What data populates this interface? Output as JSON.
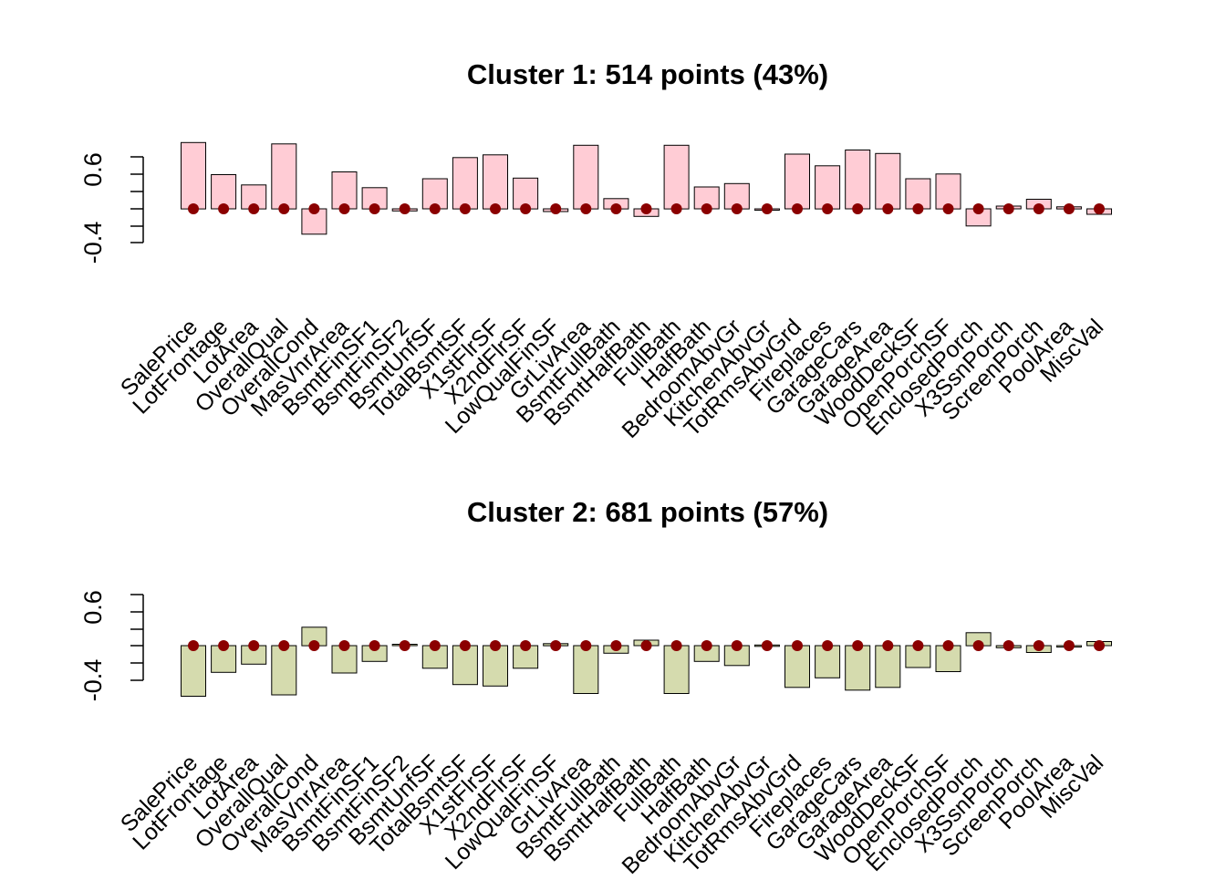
{
  "chart_data": [
    {
      "type": "bar",
      "title": "Cluster 1: 514 points (43%)",
      "xlabel": "",
      "ylabel": "",
      "yticks": [
        "0.6",
        "-0.4"
      ],
      "bar_color": "#FFCCD5",
      "marker_color": "#8B0000",
      "categories": [
        "SalePrice",
        "LotFrontage",
        "LotArea",
        "OverallQual",
        "OverallCond",
        "MasVnrArea",
        "BsmtFinSF1",
        "BsmtFinSF2",
        "BsmtUnfSF",
        "TotalBsmtSF",
        "X1stFlrSF",
        "X2ndFlrSF",
        "LowQualFinSF",
        "GrLivArea",
        "BsmtFullBath",
        "BsmtHalfBath",
        "FullBath",
        "HalfBath",
        "BedroomAbvGr",
        "KitchenAbvGr",
        "TotRmsAbvGrd",
        "Fireplaces",
        "GarageCars",
        "GarageArea",
        "WoodDeckSF",
        "OpenPorchSF",
        "EnclosedPorch",
        "X3SsnPorch",
        "ScreenPorch",
        "PoolArea",
        "MiscVal"
      ],
      "values": [
        0.97,
        0.5,
        0.35,
        0.95,
        -0.37,
        0.54,
        0.31,
        -0.03,
        0.44,
        0.75,
        0.79,
        0.45,
        -0.04,
        0.93,
        0.15,
        -0.11,
        0.93,
        0.32,
        0.37,
        -0.02,
        0.8,
        0.63,
        0.86,
        0.81,
        0.44,
        0.51,
        -0.25,
        0.04,
        0.14,
        0.03,
        -0.08
      ],
      "markers": [
        0,
        0,
        0,
        0,
        0,
        0,
        0,
        0,
        0,
        0,
        0,
        0,
        0,
        0,
        0,
        0,
        0,
        0,
        0,
        0,
        0,
        0,
        0,
        0,
        0,
        0,
        0,
        0,
        0,
        0,
        0
      ]
    },
    {
      "type": "bar",
      "title": "Cluster 2: 681 points (57%)",
      "xlabel": "",
      "ylabel": "",
      "yticks": [
        "0.6",
        "-0.4"
      ],
      "bar_color": "#D5DBAE",
      "marker_color": "#8B0000",
      "categories": [
        "SalePrice",
        "LotFrontage",
        "LotArea",
        "OverallQual",
        "OverallCond",
        "MasVnrArea",
        "BsmtFinSF1",
        "BsmtFinSF2",
        "BsmtUnfSF",
        "TotalBsmtSF",
        "X1stFlrSF",
        "X2ndFlrSF",
        "LowQualFinSF",
        "GrLivArea",
        "BsmtFullBath",
        "BsmtHalfBath",
        "FullBath",
        "HalfBath",
        "BedroomAbvGr",
        "KitchenAbvGr",
        "TotRmsAbvGrd",
        "Fireplaces",
        "GarageCars",
        "GarageArea",
        "WoodDeckSF",
        "OpenPorchSF",
        "EnclosedPorch",
        "X3SsnPorch",
        "ScreenPorch",
        "PoolArea",
        "MiscVal"
      ],
      "values": [
        -0.74,
        -0.39,
        -0.27,
        -0.72,
        0.27,
        -0.4,
        -0.23,
        0.02,
        -0.33,
        -0.57,
        -0.59,
        -0.33,
        0.03,
        -0.7,
        -0.11,
        0.08,
        -0.7,
        -0.23,
        -0.29,
        0.01,
        -0.61,
        -0.47,
        -0.65,
        -0.61,
        -0.32,
        -0.38,
        0.19,
        -0.03,
        -0.1,
        -0.02,
        0.06
      ],
      "markers": [
        0,
        0,
        0,
        0,
        0,
        0,
        0,
        0,
        0,
        0,
        0,
        0,
        0,
        0,
        0,
        0,
        0,
        0,
        0,
        0,
        0,
        0,
        0,
        0,
        0,
        0,
        0,
        0,
        0,
        0,
        0
      ]
    }
  ]
}
